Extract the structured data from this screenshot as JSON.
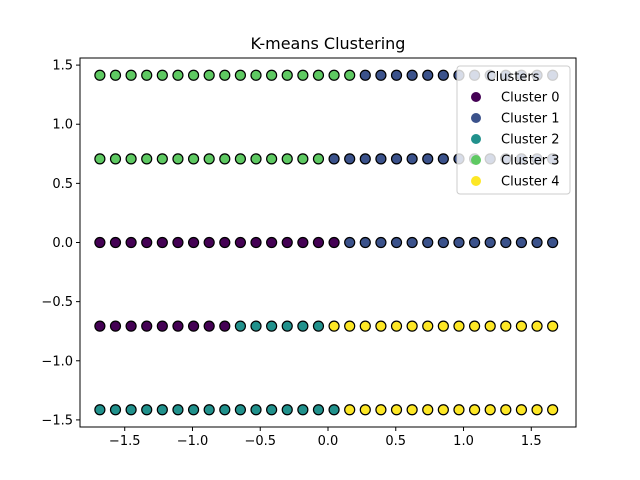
{
  "chart_data": {
    "type": "scatter",
    "title": "K-means Clustering",
    "xlabel": "",
    "ylabel": "",
    "xlim": [
      -1.83,
      1.83
    ],
    "ylim": [
      -1.56,
      1.56
    ],
    "x_ticks": [
      -1.5,
      -1.0,
      -0.5,
      0.0,
      0.5,
      1.0,
      1.5
    ],
    "x_tick_labels": [
      "−1.5",
      "−1.0",
      "−0.5",
      "0.0",
      "0.5",
      "1.0",
      "1.5"
    ],
    "y_ticks": [
      -1.5,
      -1.0,
      -0.5,
      0.0,
      0.5,
      1.0,
      1.5
    ],
    "y_tick_labels": [
      "−1.5",
      "−1.0",
      "−0.5",
      "0.0",
      "0.5",
      "1.0",
      "1.5"
    ],
    "grid": false,
    "legend": {
      "title": "Clusters",
      "placement": "upper right"
    },
    "x_values": [
      -1.6833,
      -1.5681,
      -1.4529,
      -1.3377,
      -1.2225,
      -1.1072,
      -0.992,
      -0.8768,
      -0.7616,
      -0.6464,
      -0.5312,
      -0.416,
      -0.3008,
      -0.1856,
      -0.0704,
      0.0448,
      0.16,
      0.2752,
      0.3904,
      0.5056,
      0.6208,
      0.736,
      0.8512,
      0.9664,
      1.0816,
      1.1969,
      1.3121,
      1.4273,
      1.5425,
      1.6577
    ],
    "series": [
      {
        "name": "Cluster 0",
        "color": "#440154",
        "points": [
          {
            "y": 0.0,
            "x_from": -1.6833,
            "x_to": 0.0448
          },
          {
            "y": -0.707,
            "x_from": -1.6833,
            "x_to": -0.7616
          }
        ]
      },
      {
        "name": "Cluster 1",
        "color": "#3b528b",
        "points": [
          {
            "y": 1.414,
            "x_from": 0.2752,
            "x_to": 1.6577
          },
          {
            "y": 0.707,
            "x_from": 0.0448,
            "x_to": 1.6577
          },
          {
            "y": 0.0,
            "x_from": 0.16,
            "x_to": 1.6577
          }
        ]
      },
      {
        "name": "Cluster 2",
        "color": "#21918c",
        "points": [
          {
            "y": -0.707,
            "x_from": -0.6464,
            "x_to": -0.0704
          },
          {
            "y": -1.414,
            "x_from": -1.6833,
            "x_to": 0.0448
          }
        ]
      },
      {
        "name": "Cluster 3",
        "color": "#5ec962",
        "points": [
          {
            "y": 1.414,
            "x_from": -1.6833,
            "x_to": 0.16
          },
          {
            "y": 0.707,
            "x_from": -1.6833,
            "x_to": -0.0704
          }
        ]
      },
      {
        "name": "Cluster 4",
        "color": "#fde725",
        "points": [
          {
            "y": -0.707,
            "x_from": 0.0448,
            "x_to": 1.6577
          },
          {
            "y": -1.414,
            "x_from": 0.16,
            "x_to": 1.6577
          }
        ]
      }
    ]
  }
}
